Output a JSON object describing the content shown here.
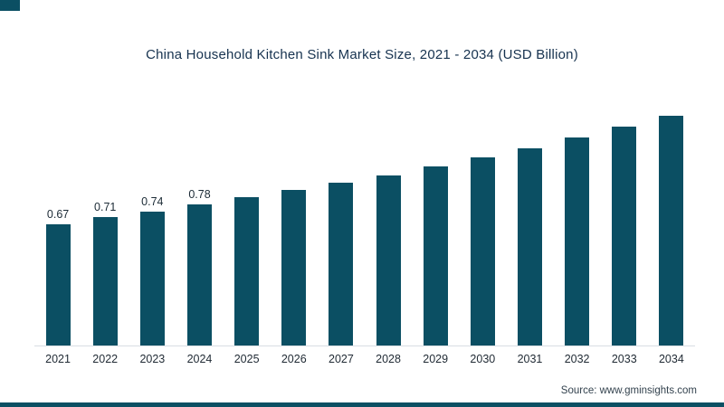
{
  "title": "China Household Kitchen Sink Market Size, 2021 - 2034 (USD Billion)",
  "source": "Source: www.gminsights.com",
  "colors": {
    "bar": "#0b4f63",
    "title_text": "#16324f",
    "accent_strip": "#0b4f63"
  },
  "chart_data": {
    "type": "bar",
    "title": "China Household Kitchen Sink Market Size, 2021 - 2034 (USD Billion)",
    "categories": [
      "2021",
      "2022",
      "2023",
      "2024",
      "2025",
      "2026",
      "2027",
      "2028",
      "2029",
      "2030",
      "2031",
      "2032",
      "2033",
      "2034"
    ],
    "values": [
      0.67,
      0.71,
      0.74,
      0.78,
      0.82,
      0.86,
      0.9,
      0.94,
      0.99,
      1.04,
      1.09,
      1.15,
      1.21,
      1.27
    ],
    "data_labels_shown": [
      "0.67",
      "0.71",
      "0.74",
      "0.78"
    ],
    "data_labels_shown_count": 4,
    "xlabel": "",
    "ylabel": "",
    "ylim": [
      0,
      1.4
    ],
    "grid": false,
    "legend": "none",
    "bar_color": "#0b4f63"
  }
}
